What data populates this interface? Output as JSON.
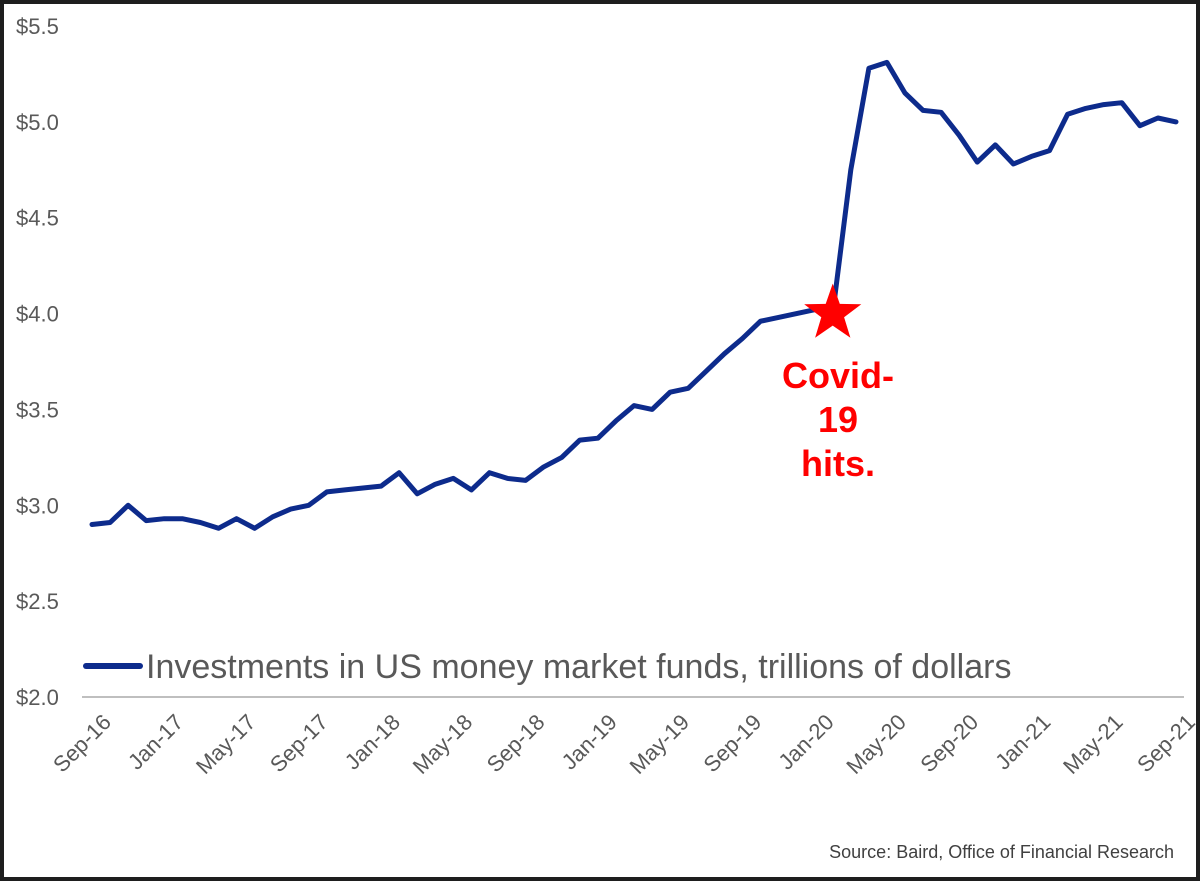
{
  "chart_data": {
    "type": "line",
    "ylim": [
      2.0,
      5.5
    ],
    "y_ticks": [
      2.0,
      2.5,
      3.0,
      3.5,
      4.0,
      4.5,
      5.0,
      5.5
    ],
    "y_tick_labels": [
      "$2.0",
      "$2.5",
      "$3.0",
      "$3.5",
      "$4.0",
      "$4.5",
      "$5.0",
      "$5.5"
    ],
    "x_tick_labels": [
      "Sep-16",
      "Jan-17",
      "May-17",
      "Sep-17",
      "Jan-18",
      "May-18",
      "Sep-18",
      "Jan-19",
      "May-19",
      "Sep-19",
      "Jan-20",
      "May-20",
      "Sep-20",
      "Jan-21",
      "May-21",
      "Sep-21"
    ],
    "grid": false,
    "legend_position": "bottom-left",
    "series": [
      {
        "name": "Investments in US money market funds, trillions of dollars",
        "color": "#0d2b8c",
        "x": [
          "Sep-16",
          "Oct-16",
          "Nov-16",
          "Dec-16",
          "Jan-17",
          "Feb-17",
          "Mar-17",
          "Apr-17",
          "May-17",
          "Jun-17",
          "Jul-17",
          "Aug-17",
          "Sep-17",
          "Oct-17",
          "Nov-17",
          "Dec-17",
          "Jan-18",
          "Feb-18",
          "Mar-18",
          "Apr-18",
          "May-18",
          "Jun-18",
          "Jul-18",
          "Aug-18",
          "Sep-18",
          "Oct-18",
          "Nov-18",
          "Dec-18",
          "Jan-19",
          "Feb-19",
          "Mar-19",
          "Apr-19",
          "May-19",
          "Jun-19",
          "Jul-19",
          "Aug-19",
          "Sep-19",
          "Oct-19",
          "Nov-19",
          "Dec-19",
          "Jan-20",
          "Feb-20",
          "Mar-20",
          "Apr-20",
          "May-20",
          "Jun-20",
          "Jul-20",
          "Aug-20",
          "Sep-20",
          "Oct-20",
          "Nov-20",
          "Dec-20",
          "Jan-21",
          "Feb-21",
          "Mar-21",
          "Apr-21",
          "May-21",
          "Jun-21",
          "Jul-21",
          "Aug-21",
          "Sep-21"
        ],
        "values": [
          2.9,
          2.91,
          3.0,
          2.92,
          2.93,
          2.93,
          2.91,
          2.88,
          2.93,
          2.88,
          2.94,
          2.98,
          3.0,
          3.07,
          3.08,
          3.09,
          3.1,
          3.17,
          3.06,
          3.11,
          3.14,
          3.08,
          3.17,
          3.14,
          3.13,
          3.2,
          3.25,
          3.34,
          3.35,
          3.44,
          3.52,
          3.5,
          3.59,
          3.61,
          3.7,
          3.79,
          3.87,
          3.96,
          3.98,
          4.0,
          4.02,
          4.0,
          4.75,
          5.28,
          5.31,
          5.15,
          5.06,
          5.05,
          4.93,
          4.79,
          4.88,
          4.78,
          4.82,
          4.85,
          5.04,
          5.07,
          5.09,
          5.1,
          4.98,
          5.02,
          5.0
        ]
      }
    ],
    "annotation": {
      "lines": [
        "Covid-",
        "19",
        "hits."
      ],
      "marker": "star-icon",
      "marker_x": "Feb-20",
      "marker_y": 4.0,
      "color": "#ff0000"
    },
    "source": "Source: Baird, Office of Financial Research"
  }
}
